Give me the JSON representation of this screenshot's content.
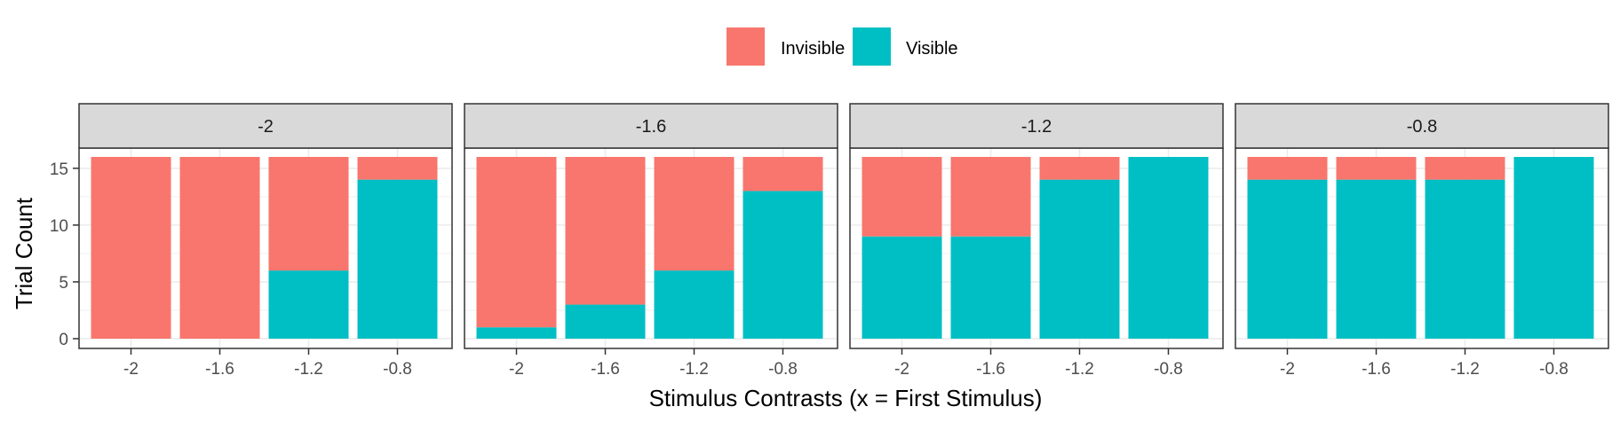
{
  "legend": {
    "items": [
      {
        "label": "Invisible",
        "color": "#F8766D"
      },
      {
        "label": "Visible",
        "color": "#00BFC4"
      }
    ]
  },
  "axes": {
    "xlabel": "Stimulus Contrasts (x = First Stimulus)",
    "ylabel": "Trial Count",
    "yticks": [
      0,
      5,
      10,
      15
    ],
    "ylim": [
      0,
      16
    ]
  },
  "chart_data": {
    "type": "bar",
    "stacked": true,
    "facet_by": "second stimulus contrast",
    "categories": [
      "-2",
      "-1.6",
      "-1.2",
      "-0.8"
    ],
    "facets": [
      {
        "label": "-2",
        "series": [
          {
            "name": "Invisible",
            "values": [
              16,
              16,
              10,
              2
            ]
          },
          {
            "name": "Visible",
            "values": [
              0,
              0,
              6,
              14
            ]
          }
        ]
      },
      {
        "label": "-1.6",
        "series": [
          {
            "name": "Invisible",
            "values": [
              15,
              13,
              10,
              3
            ]
          },
          {
            "name": "Visible",
            "values": [
              1,
              3,
              6,
              13
            ]
          }
        ]
      },
      {
        "label": "-1.2",
        "series": [
          {
            "name": "Invisible",
            "values": [
              7,
              7,
              2,
              0
            ]
          },
          {
            "name": "Visible",
            "values": [
              9,
              9,
              14,
              16
            ]
          }
        ]
      },
      {
        "label": "-0.8",
        "series": [
          {
            "name": "Invisible",
            "values": [
              2,
              2,
              2,
              0
            ]
          },
          {
            "name": "Visible",
            "values": [
              14,
              14,
              14,
              16
            ]
          }
        ]
      }
    ],
    "legend_position": "top",
    "grid": true
  }
}
